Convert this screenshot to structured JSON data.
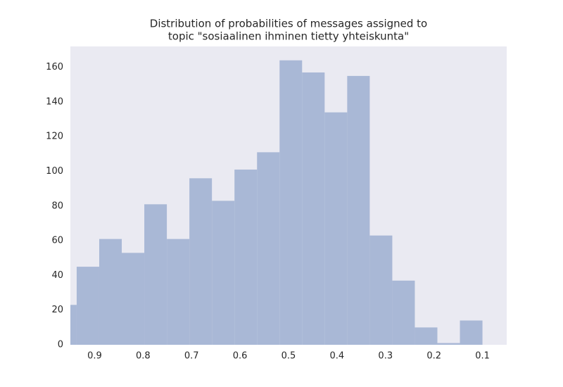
{
  "chart_data": {
    "type": "histogram",
    "title": [
      "Distribution of probabilities of messages assigned to",
      "topic \"sosiaalinen ihminen tietty yhteiskunta\""
    ],
    "bins": [
      0.1,
      0.1465,
      0.193,
      0.2395,
      0.286,
      0.3325,
      0.379,
      0.4255,
      0.472,
      0.5185,
      0.565,
      0.6115,
      0.658,
      0.7045,
      0.751,
      0.7975,
      0.844,
      0.8905,
      0.937,
      0.9835
    ],
    "values": [
      14,
      1,
      10,
      37,
      63,
      155,
      134,
      157,
      164,
      111,
      101,
      83,
      96,
      61,
      81,
      53,
      61,
      45,
      23
    ],
    "color": "#a9b8d6",
    "xlim": [
      0.95,
      0.05
    ],
    "xticks": [
      0.9,
      0.8,
      0.7,
      0.6,
      0.5,
      0.4,
      0.3,
      0.2,
      0.1
    ],
    "ylim": [
      0,
      172
    ],
    "yticks": [
      0,
      20,
      40,
      60,
      80,
      100,
      120,
      140,
      160
    ],
    "grid": true
  }
}
